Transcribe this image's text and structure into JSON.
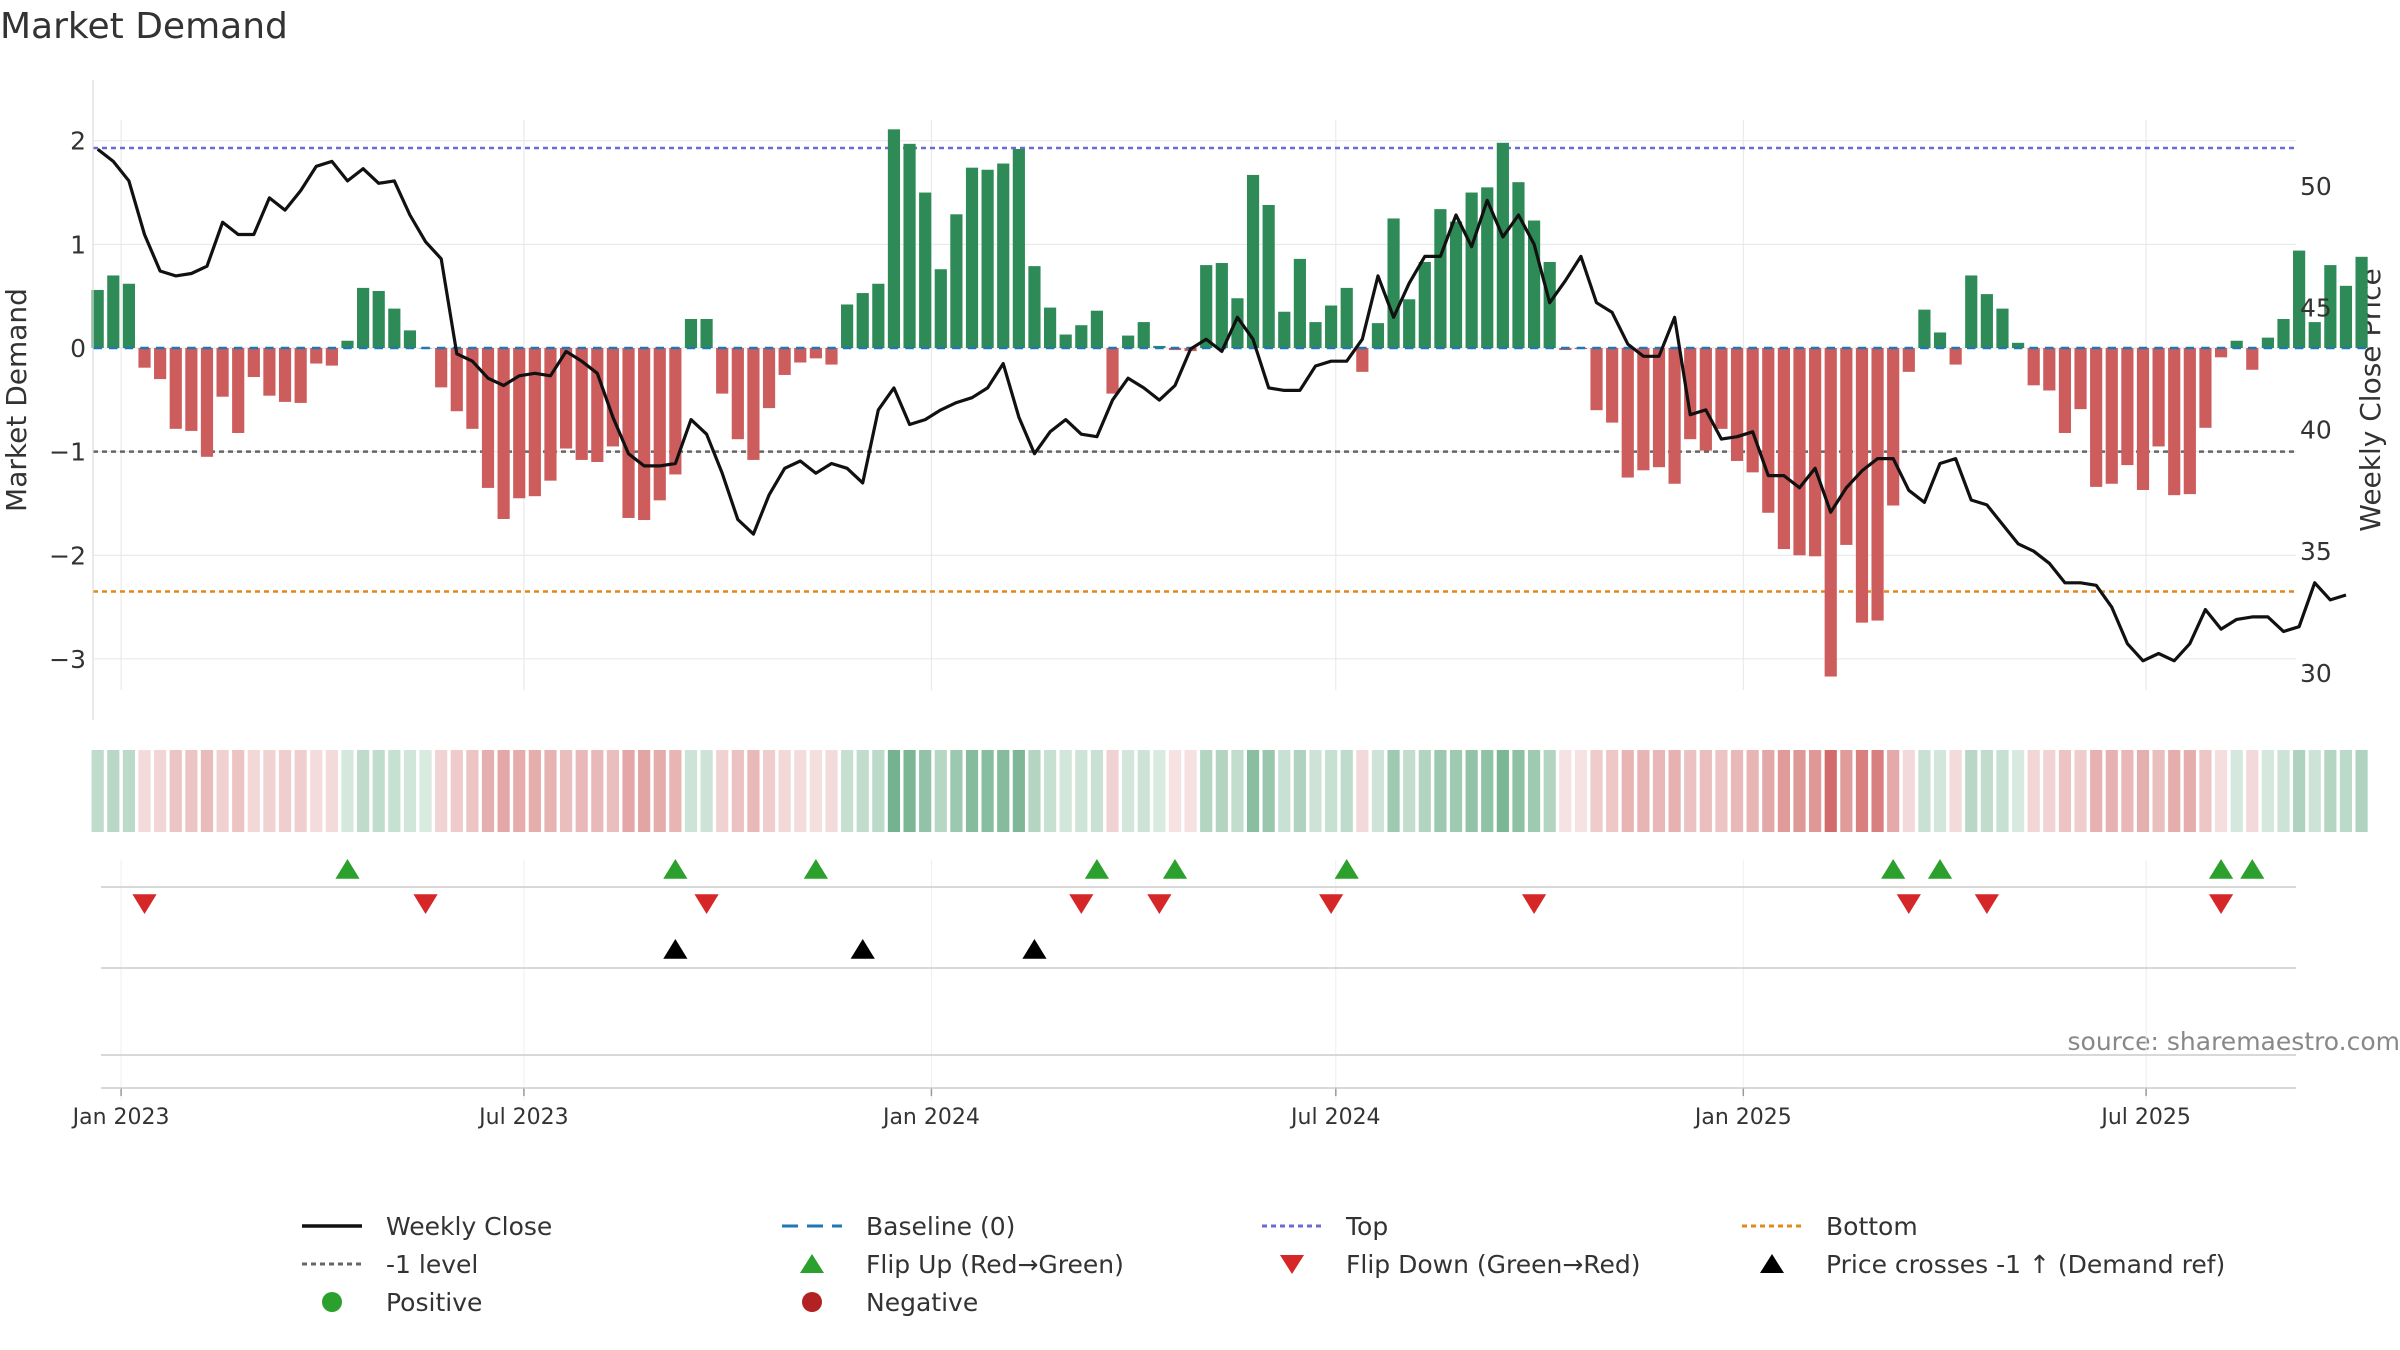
{
  "chart_data": {
    "type": "bar",
    "title": "Market Demand",
    "ylabel_left": "Market Demand",
    "ylabel_right": "Weekly Close Price",
    "source": "source: sharemaestro.com",
    "left_ylim": [
      -3.3,
      2.2
    ],
    "left_yticks": [
      -3,
      -2,
      -1,
      0,
      1,
      2
    ],
    "left_ytick_labels": [
      "−3",
      "−2",
      "−1",
      "0",
      "1",
      "2"
    ],
    "right_ylim": [
      29.3,
      52.7
    ],
    "right_yticks": [
      30,
      35,
      40,
      45,
      50
    ],
    "right_ytick_labels": [
      "30",
      "35",
      "40",
      "45",
      "50"
    ],
    "levels": {
      "top": 1.93,
      "minus_one": -1.0,
      "bottom": -2.35,
      "baseline": 0
    },
    "x_start_week": -0.3,
    "x_end_week": 140.8,
    "x_ticks": [
      {
        "label": "Jan 2023",
        "week": 1.5
      },
      {
        "label": "Jul 2023",
        "week": 27.3
      },
      {
        "label": "Jan 2024",
        "week": 53.4
      },
      {
        "label": "Jul 2024",
        "week": 79.3
      },
      {
        "label": "Jan 2025",
        "week": 105.4
      },
      {
        "label": "Jul 2025",
        "week": 131.2
      }
    ],
    "series": [
      {
        "name": "Market Demand",
        "values": [
          0.56,
          0.7,
          0.62,
          -0.19,
          -0.3,
          -0.78,
          -0.8,
          -1.05,
          -0.47,
          -0.82,
          -0.28,
          -0.46,
          -0.52,
          -0.53,
          -0.15,
          -0.17,
          0.07,
          0.58,
          0.55,
          0.38,
          0.17,
          0.0,
          -0.38,
          -0.61,
          -0.78,
          -1.35,
          -1.65,
          -1.45,
          -1.43,
          -1.28,
          -0.97,
          -1.08,
          -1.1,
          -0.95,
          -1.64,
          -1.66,
          -1.47,
          -1.22,
          0.28,
          0.28,
          -0.44,
          -0.88,
          -1.08,
          -0.58,
          -0.26,
          -0.14,
          -0.1,
          -0.16,
          0.42,
          0.53,
          0.62,
          2.11,
          1.97,
          1.5,
          0.76,
          1.29,
          1.74,
          1.72,
          1.78,
          1.92,
          0.79,
          0.39,
          0.13,
          0.22,
          0.36,
          -0.44,
          0.12,
          0.25,
          0.02,
          -0.02,
          -0.03,
          0.8,
          0.82,
          0.48,
          1.67,
          1.38,
          0.35,
          0.86,
          0.25,
          0.41,
          0.58,
          -0.23,
          0.24,
          1.25,
          0.47,
          0.83,
          1.34,
          1.22,
          1.5,
          1.55,
          1.98,
          1.6,
          1.23,
          0.83,
          -0.02,
          -0.01,
          -0.6,
          -0.72,
          -1.25,
          -1.18,
          -1.15,
          -1.31,
          -0.88,
          -0.99,
          -0.78,
          -1.09,
          -1.2,
          -1.59,
          -1.94,
          -2.0,
          -2.01,
          -3.17,
          -1.9,
          -2.65,
          -2.63,
          -1.52,
          -0.23,
          0.37,
          0.15,
          -0.16,
          0.7,
          0.52,
          0.38,
          0.05,
          -0.36,
          -0.41,
          -0.82,
          -0.59,
          -1.34,
          -1.31,
          -1.13,
          -1.37,
          -0.95,
          -1.42,
          -1.41,
          -0.77,
          -0.09,
          0.07,
          -0.21,
          0.1,
          0.28,
          0.94,
          0.25,
          0.8,
          0.6,
          0.88
        ]
      },
      {
        "name": "Weekly Close",
        "values": [
          51.5,
          51.0,
          50.2,
          48.0,
          46.5,
          46.3,
          46.4,
          46.7,
          48.5,
          48.0,
          48.0,
          49.5,
          49.0,
          49.8,
          50.8,
          51.0,
          50.2,
          50.7,
          50.1,
          50.2,
          48.8,
          47.7,
          47.0,
          43.1,
          42.8,
          42.1,
          41.8,
          42.2,
          42.3,
          42.2,
          43.2,
          42.8,
          42.3,
          40.5,
          39.0,
          38.5,
          38.5,
          38.6,
          40.4,
          39.8,
          38.2,
          36.3,
          35.7,
          37.3,
          38.4,
          38.7,
          38.2,
          38.6,
          38.4,
          37.8,
          40.8,
          41.7,
          40.2,
          40.4,
          40.8,
          41.1,
          41.3,
          41.7,
          42.7,
          40.5,
          39.0,
          39.9,
          40.4,
          39.8,
          39.7,
          41.2,
          42.1,
          41.7,
          41.2,
          41.8,
          43.3,
          43.7,
          43.2,
          44.6,
          43.7,
          41.7,
          41.6,
          41.6,
          42.6,
          42.8,
          42.8,
          43.7,
          46.3,
          44.6,
          46.0,
          47.1,
          47.1,
          48.8,
          47.5,
          49.4,
          47.9,
          48.8,
          47.6,
          45.2,
          46.1,
          47.1,
          45.2,
          44.8,
          43.5,
          43.0,
          43.0,
          44.6,
          40.6,
          40.8,
          39.6,
          39.7,
          39.9,
          38.1,
          38.1,
          37.6,
          38.4,
          36.6,
          37.6,
          38.3,
          38.8,
          38.8,
          37.5,
          37.0,
          38.6,
          38.8,
          37.1,
          36.9,
          36.1,
          35.3,
          35.0,
          34.5,
          33.7,
          33.7,
          33.6,
          32.7,
          31.2,
          30.5,
          30.8,
          30.5,
          31.2,
          32.6,
          31.8,
          32.2,
          32.3,
          32.3,
          31.7,
          31.9,
          33.7,
          33.0,
          33.2
        ]
      }
    ],
    "markers": {
      "flip_up_weeks": [
        16,
        37,
        46,
        64,
        69,
        80,
        115,
        118,
        136,
        138
      ],
      "flip_down_weeks": [
        3,
        21,
        39,
        63,
        68,
        79,
        92,
        116,
        121,
        136
      ],
      "price_cross_weeks": [
        37,
        49,
        60
      ]
    },
    "legend": [
      {
        "key": "weekly_close",
        "label": "Weekly Close"
      },
      {
        "key": "baseline",
        "label": "Baseline (0)"
      },
      {
        "key": "top",
        "label": "Top"
      },
      {
        "key": "bottom",
        "label": "Bottom"
      },
      {
        "key": "minus_one",
        "label": "-1 level"
      },
      {
        "key": "flip_up",
        "label": "Flip Up (Red→Green)"
      },
      {
        "key": "flip_down",
        "label": "Flip Down (Green→Red)"
      },
      {
        "key": "price_cross",
        "label": "Price crosses -1 ↑ (Demand ref)"
      },
      {
        "key": "positive",
        "label": "Positive"
      },
      {
        "key": "negative",
        "label": "Negative"
      }
    ],
    "colors": {
      "positive": "#2e8b57",
      "negative": "#cd5c5c",
      "close": "#111111",
      "baseline": "#1f77b4",
      "top": "#6b6bd6",
      "bottom": "#e08a1e",
      "minus_one": "#666666",
      "flip_up": "#2ca02c",
      "flip_down": "#d62728",
      "price_cross": "#000000",
      "positive_dot": "#2ca02c",
      "negative_dot": "#b22222",
      "grid": "#e6e6e6",
      "axis_text": "#333333"
    }
  }
}
